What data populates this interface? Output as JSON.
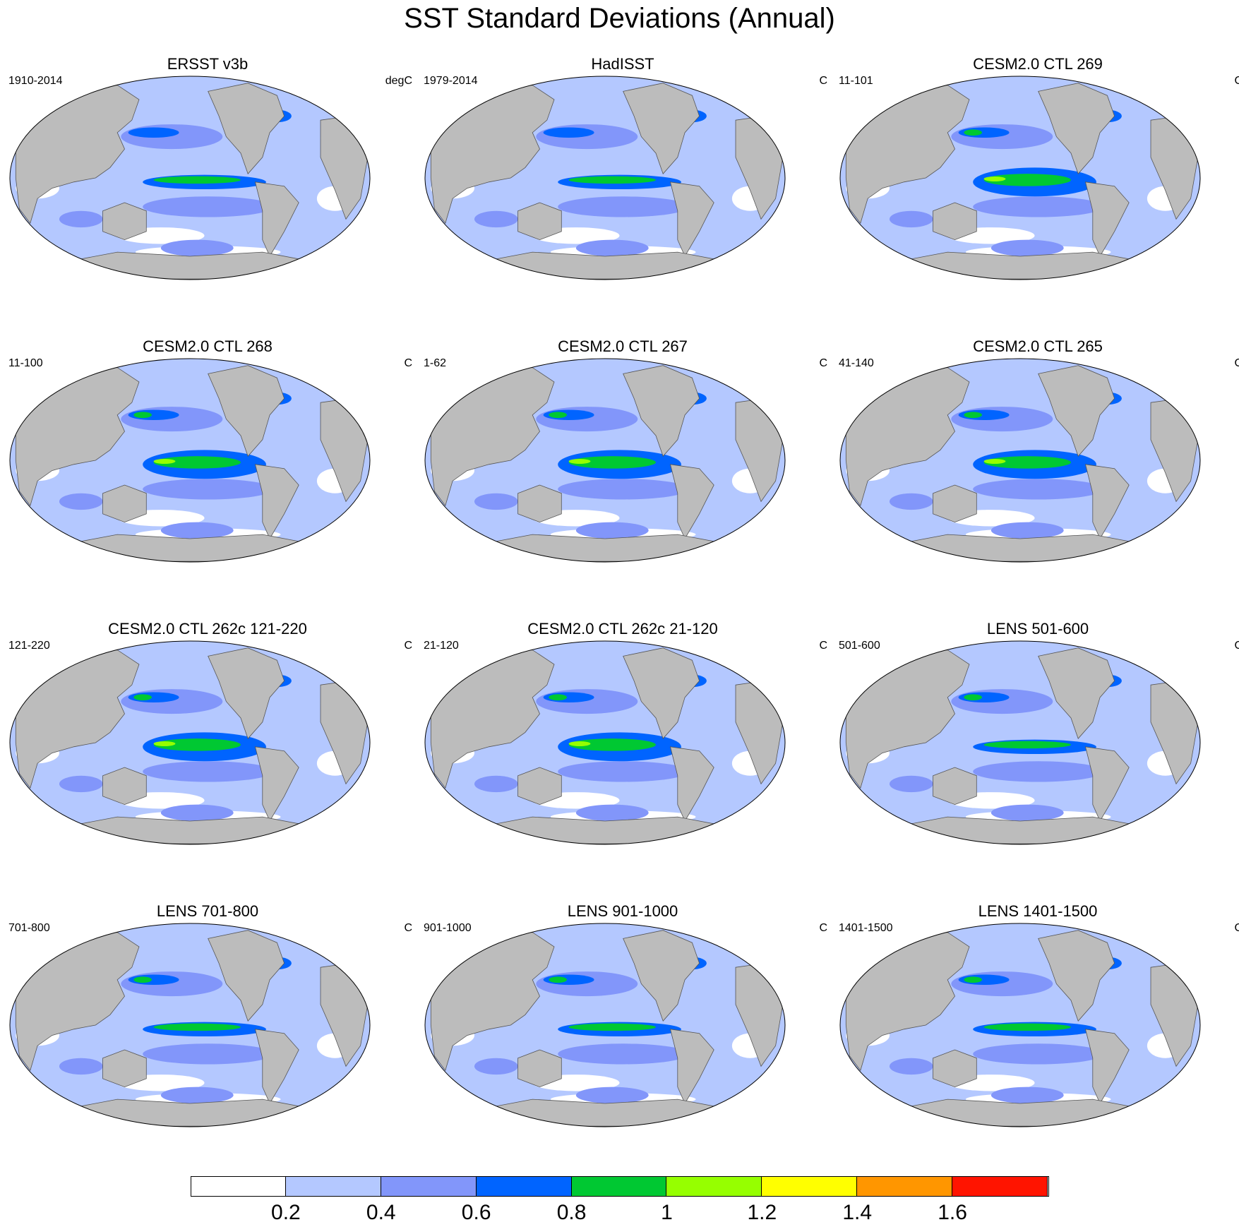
{
  "title": "SST Standard Deviations (Annual)",
  "panels": [
    {
      "title": "ERSST v3b",
      "left": "1910-2014",
      "right": "degC"
    },
    {
      "title": "HadISST",
      "left": "1979-2014",
      "right": "C"
    },
    {
      "title": "CESM2.0 CTL 269",
      "left": "11-101",
      "right": "C"
    },
    {
      "title": "CESM2.0 CTL 268",
      "left": "11-100",
      "right": "C"
    },
    {
      "title": "CESM2.0 CTL 267",
      "left": "1-62",
      "right": "C"
    },
    {
      "title": "CESM2.0 CTL 265",
      "left": "41-140",
      "right": "C"
    },
    {
      "title": "CESM2.0 CTL 262c 121-220",
      "left": "121-220",
      "right": "C"
    },
    {
      "title": "CESM2.0 CTL 262c 21-120",
      "left": "21-120",
      "right": "C"
    },
    {
      "title": "LENS 501-600",
      "left": "501-600",
      "right": "C"
    },
    {
      "title": "LENS 701-800",
      "left": "701-800",
      "right": "C"
    },
    {
      "title": "LENS 901-1000",
      "left": "901-1000",
      "right": "C"
    },
    {
      "title": "LENS 1401-1500",
      "left": "1401-1500",
      "right": "C"
    }
  ],
  "colorbar": {
    "colors": [
      "#ffffff",
      "#b4c8ff",
      "#8296fa",
      "#0064ff",
      "#00c832",
      "#96ff00",
      "#ffff00",
      "#ff9600",
      "#ff1400"
    ],
    "labels": [
      "0.2",
      "0.4",
      "0.6",
      "0.8",
      "1",
      "1.2",
      "1.4",
      "1.6"
    ]
  },
  "colors": {
    "land": "#bcbcbc",
    "ocean_base": "#b4c8ff"
  }
}
